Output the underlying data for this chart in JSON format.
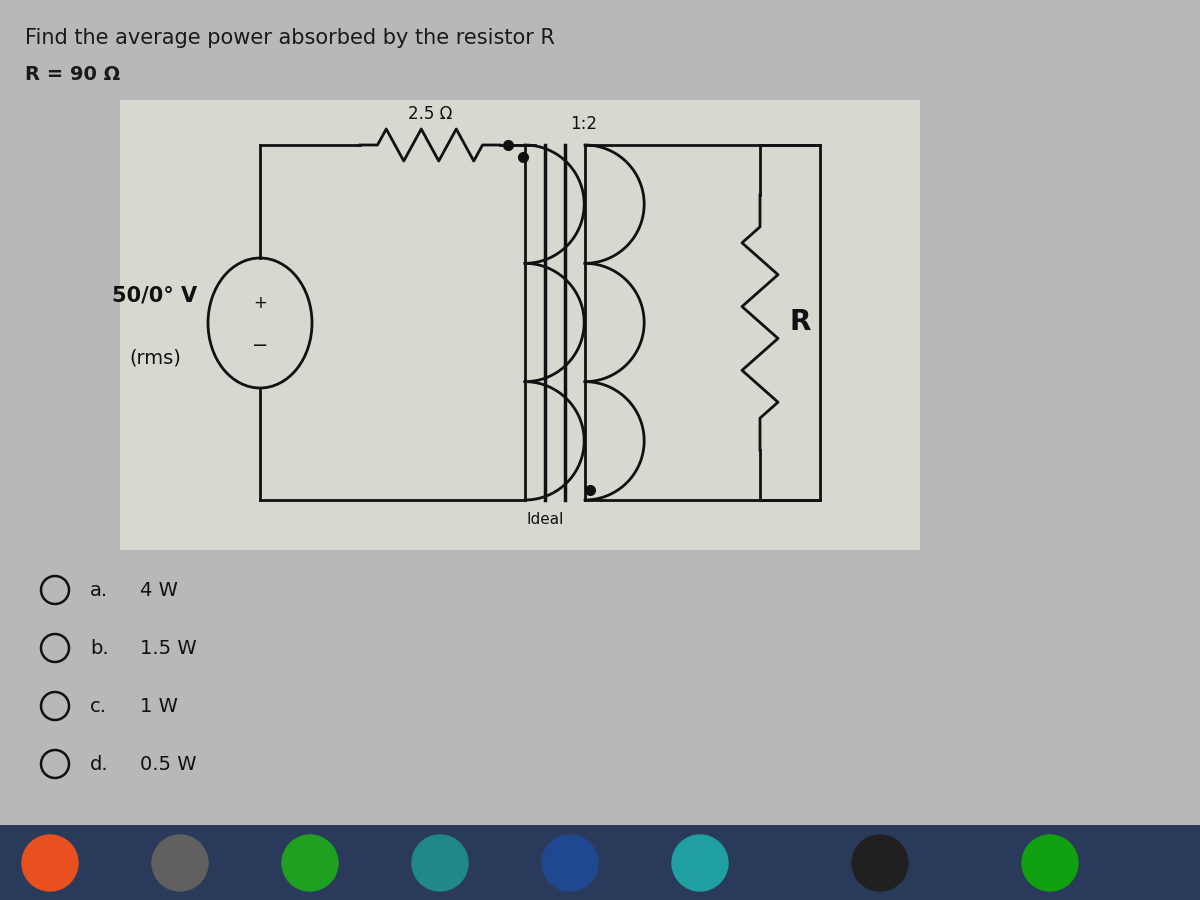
{
  "title_text": "Find the average power absorbed by the resistor R",
  "r_label": "R = 90 Ω",
  "resistor_label": "2.5 Ω",
  "transformer_ratio": "1:2",
  "source_label_line1": "50/0° V",
  "source_label_line2": "(rms)",
  "ideal_label": "Ideal",
  "r_right_label": "R",
  "options": [
    [
      "a.",
      "4 W"
    ],
    [
      "b.",
      "1.5 W"
    ],
    [
      "c.",
      "1 W"
    ],
    [
      "d.",
      "0.5 W"
    ]
  ],
  "bg_color": "#b8b8b8",
  "circuit_bg": "#d8d8d0",
  "text_color": "#1a1a1a",
  "title_fontsize": 15,
  "label_fontsize": 14,
  "option_fontsize": 14
}
